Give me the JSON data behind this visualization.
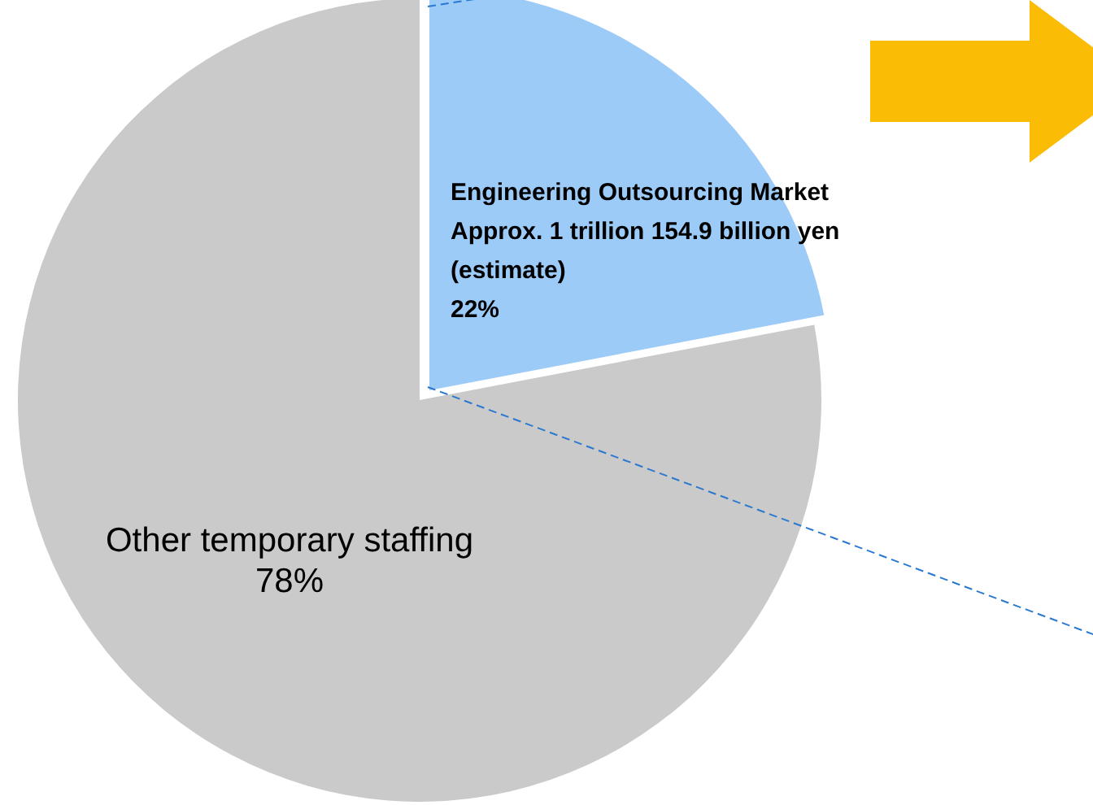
{
  "chart_data": {
    "type": "pie",
    "categories": [
      "Engineering Outsourcing Market\nApprox. 1 trillion 154.9 billion yen\n  (estimate)",
      "Other temporary staffing"
    ],
    "values": [
      22,
      78
    ],
    "colors": [
      "#9ccbf8",
      "#cacaca"
    ],
    "value_labels": [
      "22%",
      "78%"
    ]
  }
}
